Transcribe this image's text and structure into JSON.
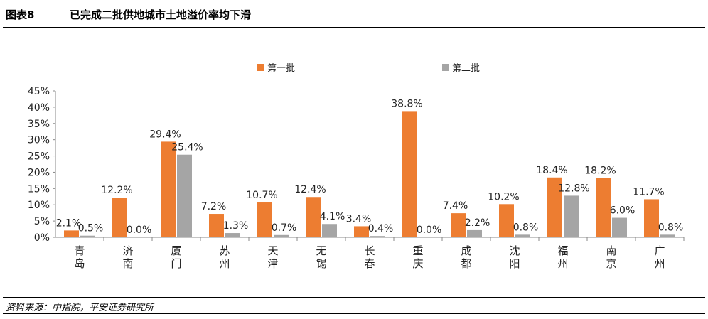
{
  "header": {
    "figure_label": "图表8",
    "title": "已完成二批供地城市土地溢价率均下滑"
  },
  "source": "资料来源：中指院，平安证券研究所",
  "chart_data": {
    "type": "bar",
    "title": "",
    "xlabel": "",
    "ylabel": "",
    "ylim": [
      0,
      45
    ],
    "yticks": [
      "0%",
      "5%",
      "10%",
      "15%",
      "20%",
      "25%",
      "30%",
      "35%",
      "40%",
      "45%"
    ],
    "grid": false,
    "legend_position": "top",
    "categories": [
      "青岛",
      "济南",
      "厦门",
      "苏州",
      "天津",
      "无锡",
      "长春",
      "重庆",
      "成都",
      "沈阳",
      "福州",
      "南京",
      "广州"
    ],
    "series": [
      {
        "name": "第一批",
        "color": "#ED7D31",
        "values": [
          2.1,
          12.2,
          29.4,
          7.2,
          10.7,
          12.4,
          3.4,
          38.8,
          7.4,
          10.2,
          18.4,
          18.2,
          11.7
        ],
        "labels": [
          "2.1%",
          "12.2%",
          "29.4%",
          "7.2%",
          "10.7%",
          "12.4%",
          "3.4%",
          "38.8%",
          "7.4%",
          "10.2%",
          "18.4%",
          "18.2%",
          "11.7%"
        ]
      },
      {
        "name": "第二批",
        "color": "#A5A5A5",
        "values": [
          0.5,
          0.0,
          25.4,
          1.3,
          0.7,
          4.1,
          0.4,
          0.0,
          2.2,
          0.8,
          12.8,
          6.0,
          0.8
        ],
        "labels": [
          "0.5%",
          "0.0%",
          "25.4%",
          "1.3%",
          "0.7%",
          "4.1%",
          "0.4%",
          "0.0%",
          "2.2%",
          "0.8%",
          "12.8%",
          "6.0%",
          "0.8%"
        ]
      }
    ]
  }
}
